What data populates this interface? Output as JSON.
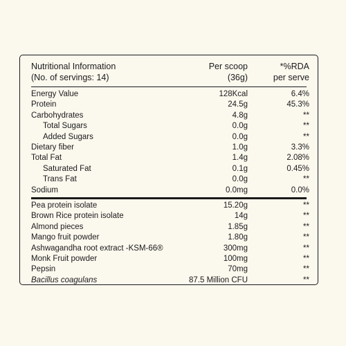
{
  "header": {
    "title_line1": "Nutritional Information",
    "title_line2": "(No. of servings: 14)",
    "col2_line1": "Per scoop",
    "col2_line2": "(36g)",
    "col3_line1": "*%RDA",
    "col3_line2": "per serve"
  },
  "nutrition_rows": [
    {
      "name": "Energy Value",
      "value": "128Kcal",
      "rda": "6.4%"
    },
    {
      "name": "Protein",
      "value": "24.5g",
      "rda": "45.3%"
    },
    {
      "name": "Carbohydrates",
      "value": "4.8g",
      "rda": "**"
    },
    {
      "name": "Total Sugars",
      "value": "0.0g",
      "rda": "**"
    },
    {
      "name": "Added Sugars",
      "value": "0.0g",
      "rda": "**"
    },
    {
      "name": "Dietary fiber",
      "value": "1.0g",
      "rda": "3.3%"
    },
    {
      "name": "Total Fat",
      "value": "1.4g",
      "rda": "2.08%"
    },
    {
      "name": "Saturated Fat",
      "value": "0.1g",
      "rda": "0.45%"
    },
    {
      "name": "Trans Fat",
      "value": "0.0g",
      "rda": "**"
    },
    {
      "name": "Sodium",
      "value": "0.0mg",
      "rda": "0.0%"
    }
  ],
  "ingredient_rows": [
    {
      "name": "Pea protein isolate",
      "value": "15.20g",
      "rda": "**"
    },
    {
      "name": "Brown Rice protein isolate",
      "value": "14g",
      "rda": "**"
    },
    {
      "name": "Almond pieces",
      "value": "1.85g",
      "rda": "**"
    },
    {
      "name": "Mango fruit powder",
      "value": "1.80g",
      "rda": "**"
    },
    {
      "name": "Ashwagandha root extract -KSM-66®",
      "value": "300mg",
      "rda": "**"
    },
    {
      "name": "Monk Fruit powder",
      "value": "100mg",
      "rda": "**"
    },
    {
      "name": "Pepsin",
      "value": "70mg",
      "rda": "**"
    },
    {
      "name": "Bacillus coagulans",
      "value": "87.5 Million CFU",
      "rda": "**"
    }
  ]
}
